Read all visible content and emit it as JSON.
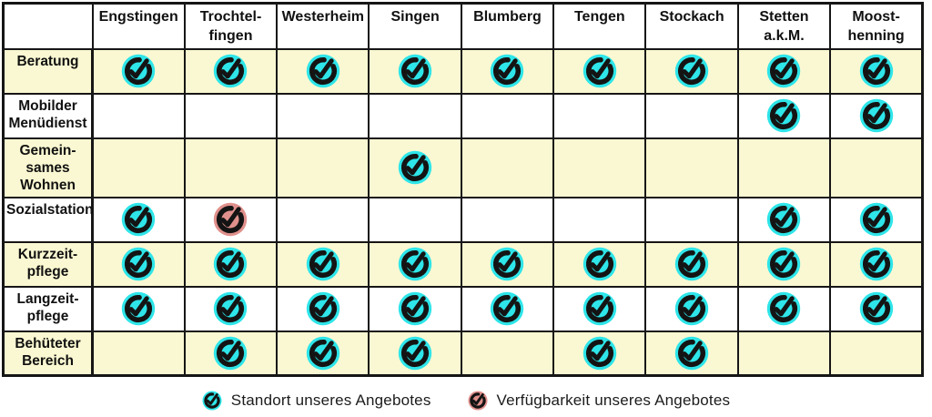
{
  "chart_data": {
    "type": "table",
    "title": "",
    "columns": [
      "Engstingen",
      "Trochtel-\nfingen",
      "Westerheim",
      "Singen",
      "Blumberg",
      "Tengen",
      "Stockach",
      "Stetten\na.k.M.",
      "Moost-\nhenning"
    ],
    "rows": [
      {
        "label": "Beratung",
        "cells": [
          "standort",
          "standort",
          "standort",
          "standort",
          "standort",
          "standort",
          "standort",
          "standort",
          "standort"
        ]
      },
      {
        "label": "Mobilder\nMenüdienst",
        "cells": [
          "",
          "",
          "",
          "",
          "",
          "",
          "",
          "standort",
          "standort"
        ]
      },
      {
        "label": "Gemein-\nsames\nWohnen",
        "cells": [
          "",
          "",
          "",
          "standort",
          "",
          "",
          "",
          "",
          ""
        ]
      },
      {
        "label": "Sozialstation",
        "cells": [
          "standort",
          "verfuegbarkeit",
          "",
          "",
          "",
          "",
          "",
          "standort",
          "standort"
        ]
      },
      {
        "label": "Kurzzeit-\npflege",
        "cells": [
          "standort",
          "standort",
          "standort",
          "standort",
          "standort",
          "standort",
          "standort",
          "standort",
          "standort"
        ]
      },
      {
        "label": "Langzeit-\npflege",
        "cells": [
          "standort",
          "standort",
          "standort",
          "standort",
          "standort",
          "standort",
          "standort",
          "standort",
          "standort"
        ]
      },
      {
        "label": "Behüteter\nBereich",
        "cells": [
          "",
          "standort",
          "standort",
          "standort",
          "",
          "standort",
          "standort",
          "",
          ""
        ]
      }
    ],
    "legend": [
      {
        "key": "standort",
        "label": "Standort unseres Angebotes"
      },
      {
        "key": "verfuegbarkeit",
        "label": "Verfügbarkeit unseres Angebotes"
      }
    ],
    "layout_hints": {
      "row_striping": "alternating yellow/white starting yellow",
      "legend_position": "bottom-center"
    }
  },
  "colors": {
    "row_stripe": "#FAF8D2",
    "row_plain": "#FFFFFF",
    "border": "#161616",
    "icon_ink": "#141414",
    "standort": "#2EE5E9",
    "verfuegbarkeit": "#E0908C"
  }
}
